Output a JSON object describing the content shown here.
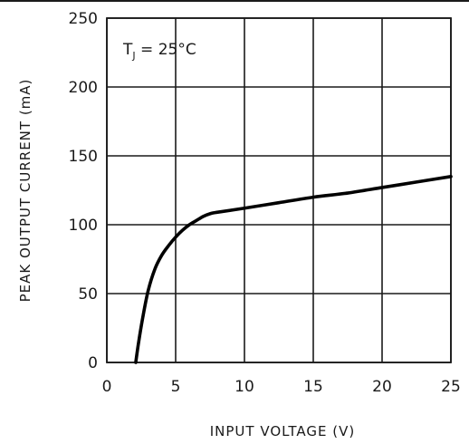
{
  "chart_data": {
    "type": "line",
    "title": "",
    "xlabel": "INPUT VOLTAGE (V)",
    "ylabel": "PEAK OUTPUT CURRENT (mA)",
    "xlim": [
      0,
      25
    ],
    "ylim": [
      0,
      250
    ],
    "xticks": [
      0,
      5,
      10,
      15,
      20,
      25
    ],
    "yticks": [
      0,
      50,
      100,
      150,
      200,
      250
    ],
    "xtick_labels": [
      "0",
      "5",
      "10",
      "15",
      "20",
      "25"
    ],
    "ytick_labels": [
      "0",
      "50",
      "100",
      "150",
      "200",
      "250"
    ],
    "grid": true,
    "annotation": {
      "label_main": "T",
      "label_sub": "J",
      "label_rest": " = 25°C"
    },
    "series": [
      {
        "x": [
          2.1,
          2.3,
          2.6,
          3.0,
          3.5,
          4.0,
          4.5,
          5.0,
          5.5,
          6.0,
          6.5,
          7.0,
          7.5,
          8.0,
          10.0,
          12.5,
          15.0,
          17.5,
          20.0,
          22.5,
          25.0
        ],
        "y": [
          0,
          14,
          32,
          52,
          68,
          78,
          85,
          91,
          96,
          100,
          103,
          106,
          108,
          109,
          112,
          116,
          120,
          123,
          127,
          131,
          135
        ]
      }
    ]
  }
}
